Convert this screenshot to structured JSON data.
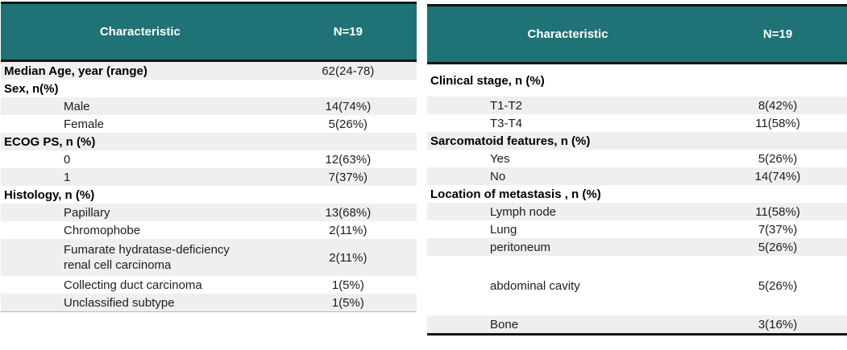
{
  "theme": {
    "header_bg": "#1f7276",
    "header_text_color": "#ffffff",
    "stripe_color": "#efefef",
    "border_color": "#141414"
  },
  "left_table": {
    "header": {
      "characteristic_label": "Characteristic",
      "n_label": "N=19"
    },
    "rows": [
      {
        "label": "Median Age, year (range)",
        "value": "62(24-78)",
        "bold": true,
        "indent": false
      },
      {
        "label": "Sex, n(%)",
        "value": "",
        "bold": true,
        "indent": false
      },
      {
        "label": "Male",
        "value": "14(74%)",
        "bold": false,
        "indent": true
      },
      {
        "label": "Female",
        "value": "5(26%)",
        "bold": false,
        "indent": true
      },
      {
        "label": "ECOG PS, n (%)",
        "value": "",
        "bold": true,
        "indent": false
      },
      {
        "label": "0",
        "value": "12(63%)",
        "bold": false,
        "indent": true
      },
      {
        "label": "1",
        "value": "7(37%)",
        "bold": false,
        "indent": true
      },
      {
        "label": "Histology, n (%)",
        "value": "",
        "bold": true,
        "indent": false
      },
      {
        "label": "Papillary",
        "value": "13(68%)",
        "bold": false,
        "indent": true
      },
      {
        "label": "Chromophobe",
        "value": "2(11%)",
        "bold": false,
        "indent": true
      },
      {
        "label": "Fumarate hydratase-deficiency\nrenal cell carcinoma",
        "value": "2(11%)",
        "bold": false,
        "indent": true,
        "size": "h46"
      },
      {
        "label": "Collecting duct carcinoma",
        "value": "1(5%)",
        "bold": false,
        "indent": true
      },
      {
        "label": "Unclassified subtype",
        "value": "1(5%)",
        "bold": false,
        "indent": true
      }
    ]
  },
  "right_table": {
    "header": {
      "characteristic_label": "Characteristic",
      "n_label": "N=19"
    },
    "rows": [
      {
        "label": "Clinical stage, n (%)",
        "value": "",
        "bold": true,
        "indent": false,
        "size": "h40"
      },
      {
        "label": "T1-T2",
        "value": "8(42%)",
        "bold": false,
        "indent": true
      },
      {
        "label": "T3-T4",
        "value": "11(58%)",
        "bold": false,
        "indent": true
      },
      {
        "label": "Sarcomatoid features, n (%)",
        "value": "",
        "bold": true,
        "indent": false
      },
      {
        "label": "Yes",
        "value": "5(26%)",
        "bold": false,
        "indent": true
      },
      {
        "label": "No",
        "value": "14(74%)",
        "bold": false,
        "indent": true
      },
      {
        "label": "Location of metastasis , n (%)",
        "value": "",
        "bold": true,
        "indent": false
      },
      {
        "label": "Lymph node",
        "value": "11(58%)",
        "bold": false,
        "indent": true
      },
      {
        "label": "Lung",
        "value": "7(37%)",
        "bold": false,
        "indent": true
      },
      {
        "label": "peritoneum",
        "value": "5(26%)",
        "bold": false,
        "indent": true
      },
      {
        "label": "abdominal cavity",
        "value": "5(26%)",
        "bold": false,
        "indent": true,
        "size": "h74"
      },
      {
        "label": "Bone",
        "value": "3(16%)",
        "bold": false,
        "indent": true
      }
    ]
  }
}
